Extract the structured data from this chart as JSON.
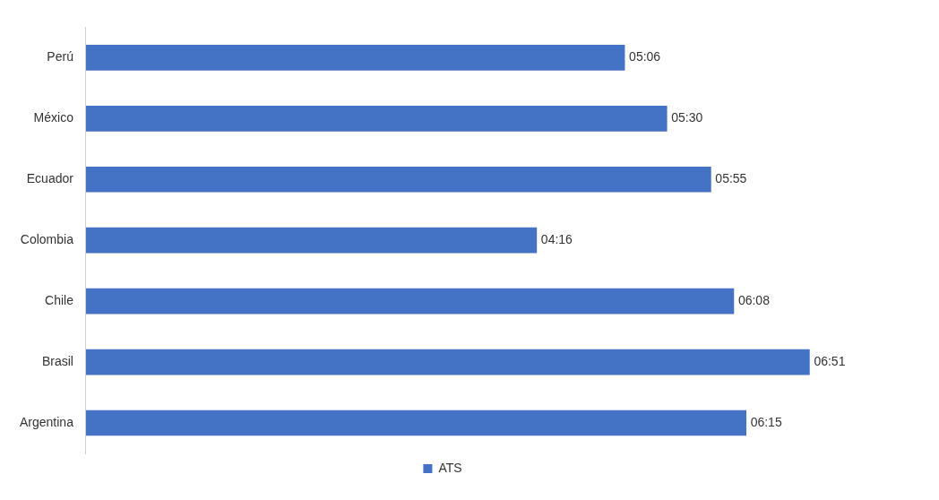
{
  "chart_data": {
    "type": "bar",
    "orientation": "horizontal",
    "categories": [
      "Perú",
      "México",
      "Ecuador",
      "Colombia",
      "Chile",
      "Brasil",
      "Argentina"
    ],
    "series": [
      {
        "name": "ATS",
        "color": "#4472c4",
        "values": [
          306,
          330,
          355,
          256,
          368,
          411,
          375
        ],
        "value_labels": [
          "05:06",
          "05:30",
          "05:55",
          "04:16",
          "06:08",
          "06:51",
          "06:15"
        ]
      }
    ],
    "tick_labels": "y",
    "legend": "bottom"
  }
}
